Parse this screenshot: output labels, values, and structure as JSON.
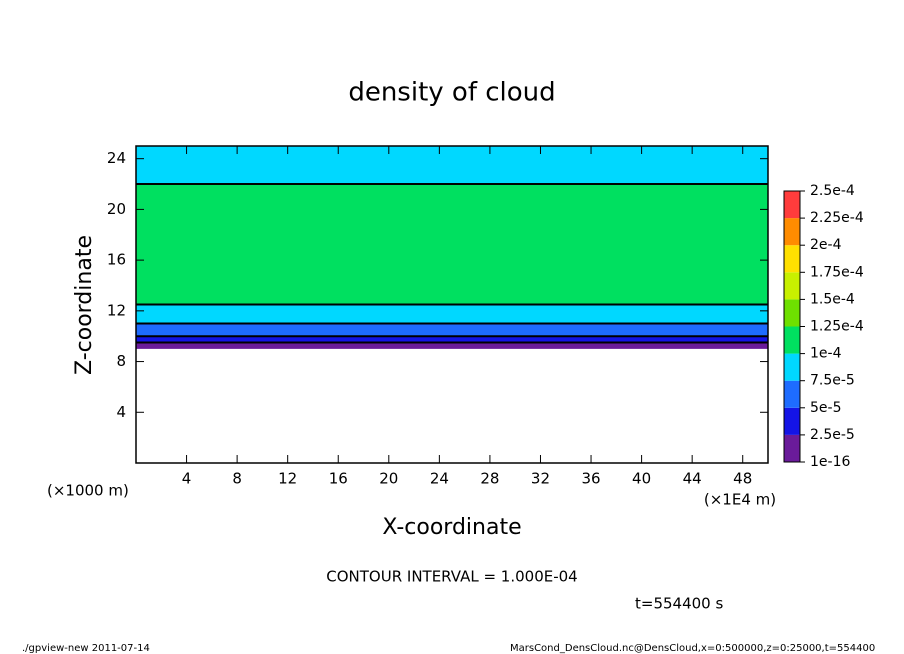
{
  "chart_data": {
    "type": "heatmap",
    "title": "density of cloud",
    "x_label": "X-coordinate",
    "y_label": "Z-coordinate",
    "x_unit": "(×1E4 m)",
    "y_unit": "(×1000 m)",
    "xlim": [
      0,
      50
    ],
    "ylim": [
      0,
      25
    ],
    "xticks": [
      4,
      8,
      12,
      16,
      20,
      24,
      28,
      32,
      36,
      40,
      44,
      48
    ],
    "yticks": [
      4,
      8,
      12,
      16,
      20,
      24
    ],
    "z_bounds": [
      9,
      9.5,
      10,
      11,
      12.5,
      22,
      25
    ],
    "values": [
      1.5e-05,
      3.5e-05,
      6e-05,
      9e-05,
      0.00011,
      9e-05
    ],
    "levels": [
      {
        "value": 1e-16,
        "label": "1e-16"
      },
      {
        "value": 2.5e-05,
        "label": "2.5e-5"
      },
      {
        "value": 5e-05,
        "label": "5e-5"
      },
      {
        "value": 7.5e-05,
        "label": "7.5e-5"
      },
      {
        "value": 0.0001,
        "label": "1e-4"
      },
      {
        "value": 0.000125,
        "label": "1.25e-4"
      },
      {
        "value": 0.00015,
        "label": "1.5e-4"
      },
      {
        "value": 0.000175,
        "label": "1.75e-4"
      },
      {
        "value": 0.0002,
        "label": "2e-4"
      },
      {
        "value": 0.000225,
        "label": "2.25e-4"
      },
      {
        "value": 0.00025,
        "label": "2.5e-4"
      }
    ],
    "colors": [
      "#6a1b9a",
      "#1414e6",
      "#1e6cff",
      "#00d8ff",
      "#00e060",
      "#6ee000",
      "#c8f000",
      "#ffe000",
      "#ff8c00",
      "#ff3c3c"
    ],
    "contour_line_color": "#000000",
    "contour_interval": "CONTOUR INTERVAL = 1.000E-04",
    "time_label": "t=554400 s",
    "footer_left": "./gpview-new  2011-07-14",
    "footer_right": "MarsCond_DensCloud.nc@DensCloud,x=0:500000,z=0:25000,t=554400"
  }
}
